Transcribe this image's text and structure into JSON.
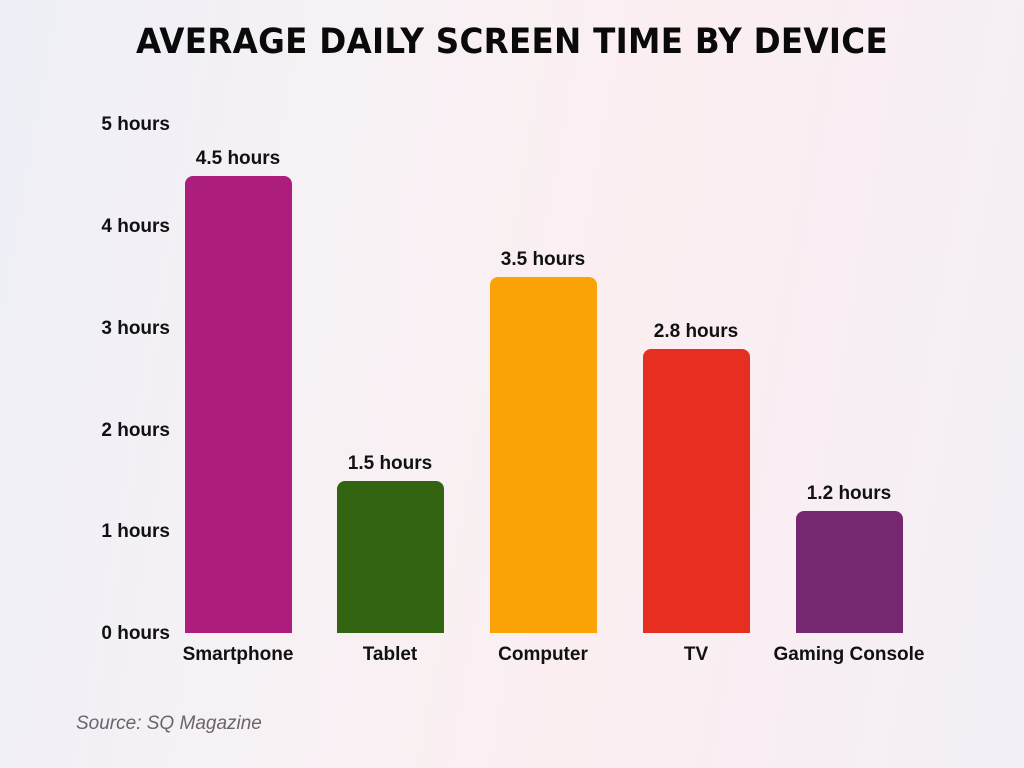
{
  "chart_data": {
    "type": "bar",
    "title": "AVERAGE DAILY SCREEN TIME BY DEVICE",
    "xlabel": "",
    "ylabel": "",
    "categories": [
      "Smartphone",
      "Tablet",
      "Computer",
      "TV",
      "Gaming Console"
    ],
    "values": [
      4.5,
      1.5,
      3.5,
      2.8,
      1.2
    ],
    "unit": "hours",
    "data_labels": [
      "4.5 hours",
      "1.5 hours",
      "3.5 hours",
      "2.8 hours",
      "1.2 hours"
    ],
    "colors": [
      "#ad1d7d",
      "#336412",
      "#fba306",
      "#e62f21",
      "#752870"
    ],
    "ylim": [
      0,
      5
    ],
    "yticks": [
      0,
      1,
      2,
      3,
      4,
      5
    ],
    "ytick_labels": [
      "0 hours",
      "1 hours",
      "2 hours",
      "3 hours",
      "4 hours",
      "5 hours"
    ],
    "grid": false,
    "legend": "none"
  },
  "source": "Source: SQ Magazine"
}
